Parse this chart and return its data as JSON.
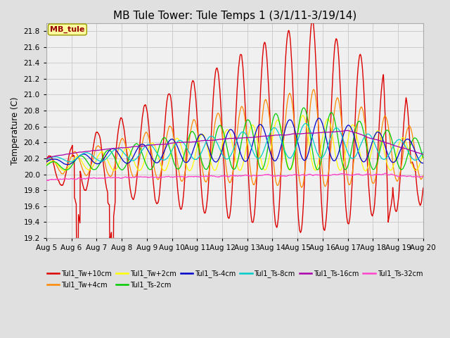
{
  "title": "MB Tule Tower: Tule Temps 1 (3/1/11-3/19/14)",
  "ylabel": "Temperature (C)",
  "ylim": [
    19.2,
    21.9
  ],
  "yticks": [
    19.2,
    19.4,
    19.6,
    19.8,
    20.0,
    20.2,
    20.4,
    20.6,
    20.8,
    21.0,
    21.2,
    21.4,
    21.6,
    21.8
  ],
  "xticklabels": [
    "Aug 5",
    "Aug 6",
    "Aug 7",
    "Aug 8",
    "Aug 9",
    "Aug 10",
    "Aug 11",
    "Aug 12",
    "Aug 13",
    "Aug 14",
    "Aug 15",
    "Aug 16",
    "Aug 17",
    "Aug 18",
    "Aug 19",
    "Aug 20"
  ],
  "legend_label": "MB_tule",
  "series_labels": [
    "Tul1_Tw+10cm",
    "Tul1_Tw+4cm",
    "Tul1_Tw+2cm",
    "Tul1_Ts-2cm",
    "Tul1_Ts-4cm",
    "Tul1_Ts-8cm",
    "Tul1_Ts-16cm",
    "Tul1_Ts-32cm"
  ],
  "series_colors": [
    "#dd0000",
    "#ff8800",
    "#ffff00",
    "#00cc00",
    "#0000cc",
    "#00cccc",
    "#aa00aa",
    "#ff44cc"
  ],
  "background_color": "#e0e0e0",
  "plot_bg_color": "#f0f0f0",
  "grid_color": "#cccccc",
  "title_fontsize": 11
}
